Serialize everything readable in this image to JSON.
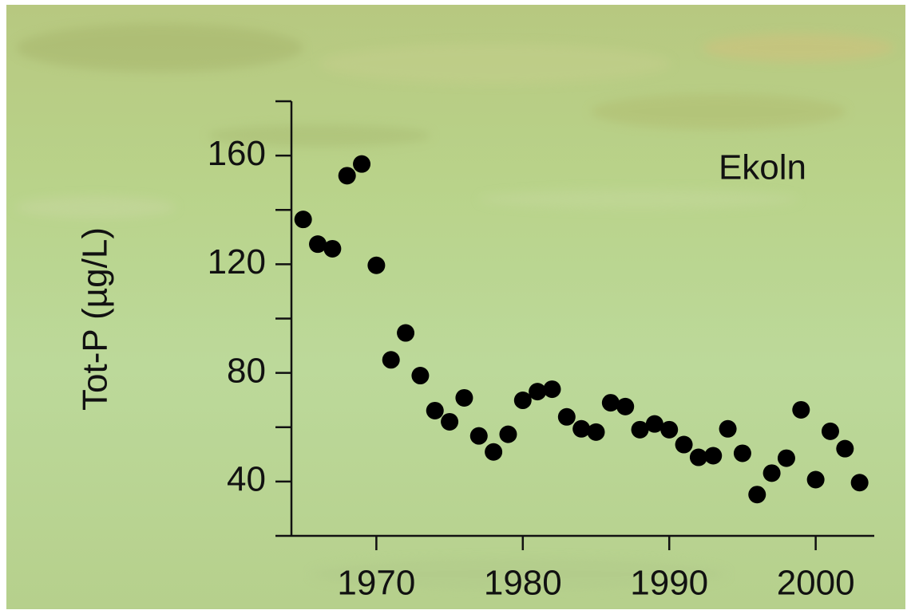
{
  "chart_data": {
    "type": "scatter",
    "annotation": "Ekoln",
    "y_label": "Tot-P (µg/L)",
    "x": [
      1965,
      1966,
      1967,
      1968,
      1969,
      1970,
      1971,
      1972,
      1973,
      1974,
      1975,
      1976,
      1977,
      1978,
      1979,
      1980,
      1981,
      1982,
      1983,
      1984,
      1985,
      1986,
      1987,
      1988,
      1989,
      1990,
      1991,
      1992,
      1993,
      1994,
      1995,
      1996,
      1997,
      1998,
      1999,
      2000,
      2001,
      2002,
      2003
    ],
    "values": [
      136.5,
      127.4,
      125.7,
      152.6,
      156.9,
      119.6,
      84.8,
      94.7,
      79,
      66.1,
      62,
      70.8,
      56.8,
      50.9,
      57.4,
      69.9,
      73.1,
      74,
      63.8,
      59.4,
      58.2,
      69,
      67.6,
      59.1,
      61.2,
      59.1,
      53.6,
      48.9,
      49.5,
      59.4,
      50.4,
      35.2,
      43.1,
      48.6,
      66.4,
      40.7,
      58.5,
      52.1,
      39.6
    ],
    "color": "#000000",
    "xlim": [
      1964.2,
      2004
    ],
    "xticks": [
      1970,
      1980,
      1990,
      2000
    ],
    "ylim": [
      20,
      180
    ],
    "yticks": [
      40,
      80,
      120,
      160
    ],
    "yminorticks": [
      20,
      60,
      100,
      140,
      180
    ]
  }
}
